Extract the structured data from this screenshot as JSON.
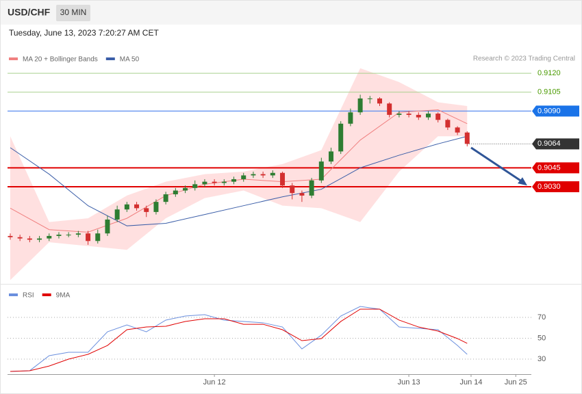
{
  "chart_data": {
    "type": "candlestick",
    "title": "USD/CHF",
    "interval": "30 MIN",
    "timestamp": "Tuesday, June 13, 2023 7:20:27 AM CET",
    "credit": "Research © 2023 Trading Central",
    "xlim": [
      -0.28,
      53.6
    ],
    "xticks": [
      {
        "value": 21,
        "label": "Jun 12"
      },
      {
        "value": 41,
        "label": "Jun 13"
      },
      {
        "value": 47.4,
        "label": "Jun 14"
      },
      {
        "value": 52,
        "label": "Jun 25"
      }
    ],
    "ylim": [
      0.8953,
      0.9158
    ],
    "candles": {
      "up_color": "#2e7d32",
      "down_color": "#d32f2f",
      "open": [
        0.8991,
        0.899,
        0.8989,
        0.8988,
        0.8989,
        0.8991,
        0.8992,
        0.8992,
        0.8993,
        0.8987,
        0.8993,
        0.9004,
        0.9012,
        0.9016,
        0.9013,
        0.901,
        0.9018,
        0.9024,
        0.9027,
        0.9029,
        0.9032,
        0.9034,
        0.9033,
        0.9034,
        0.9036,
        0.9039,
        0.904,
        0.9039,
        0.9041,
        0.9031,
        0.9025,
        0.9023,
        0.9035,
        0.905,
        0.9058,
        0.908,
        0.9089,
        0.91,
        0.91,
        0.9096,
        0.9087,
        0.9088,
        0.9087,
        0.9085,
        0.9088,
        0.9083,
        0.9077,
        0.9073
      ],
      "high": [
        0.8993,
        0.8992,
        0.8991,
        0.8991,
        0.8993,
        0.8994,
        0.8994,
        0.8995,
        0.8995,
        0.8996,
        0.9007,
        0.9015,
        0.9018,
        0.9018,
        0.9015,
        0.902,
        0.9026,
        0.9029,
        0.9031,
        0.9035,
        0.9036,
        0.9036,
        0.9036,
        0.9038,
        0.9041,
        0.9042,
        0.9042,
        0.9043,
        0.9042,
        0.9033,
        0.9027,
        0.9037,
        0.9053,
        0.9061,
        0.9082,
        0.9092,
        0.9103,
        0.9102,
        0.9101,
        0.9097,
        0.909,
        0.909,
        0.9089,
        0.909,
        0.9089,
        0.9084,
        0.9078,
        0.9074
      ],
      "low": [
        0.8988,
        0.8987,
        0.8986,
        0.8986,
        0.8987,
        0.8989,
        0.899,
        0.899,
        0.8984,
        0.8985,
        0.8991,
        0.9002,
        0.901,
        0.9011,
        0.9006,
        0.9008,
        0.9016,
        0.9022,
        0.9025,
        0.9027,
        0.903,
        0.9031,
        0.9031,
        0.9032,
        0.9034,
        0.9037,
        0.9037,
        0.9037,
        0.9029,
        0.902,
        0.9018,
        0.9021,
        0.9033,
        0.9048,
        0.9056,
        0.9078,
        0.9087,
        0.9096,
        0.9094,
        0.9085,
        0.9085,
        0.9085,
        0.9083,
        0.9083,
        0.9081,
        0.9075,
        0.9071,
        0.9062
      ],
      "close": [
        0.899,
        0.8989,
        0.8988,
        0.8989,
        0.8991,
        0.8992,
        0.8992,
        0.8993,
        0.8987,
        0.8993,
        0.9004,
        0.9012,
        0.9016,
        0.9013,
        0.901,
        0.9018,
        0.9024,
        0.9027,
        0.9029,
        0.9032,
        0.9034,
        0.9033,
        0.9034,
        0.9036,
        0.9039,
        0.904,
        0.9039,
        0.9041,
        0.9031,
        0.9025,
        0.9023,
        0.9035,
        0.905,
        0.9058,
        0.908,
        0.9089,
        0.91,
        0.91,
        0.9096,
        0.9087,
        0.9088,
        0.9087,
        0.9085,
        0.9088,
        0.9083,
        0.9077,
        0.9073,
        0.9064
      ]
    },
    "overlay_index": [
      0,
      4,
      8,
      12,
      16,
      20,
      24,
      28,
      32,
      36,
      40,
      44,
      47
    ],
    "overlays": [
      {
        "name": "MA 20 + Bollinger Bands",
        "color": "#f08080",
        "band_color": "#ffd6d6",
        "values": [
          0.9013,
          0.8996,
          0.8994,
          0.9005,
          0.9023,
          0.9032,
          0.9036,
          0.9034,
          0.9036,
          0.9067,
          0.9089,
          0.9091,
          0.908
        ],
        "upper": [
          0.907,
          0.9002,
          0.9005,
          0.9023,
          0.9034,
          0.904,
          0.9042,
          0.9048,
          0.9059,
          0.9124,
          0.9113,
          0.9097,
          0.9094
        ],
        "lower": [
          0.8956,
          0.8986,
          0.8983,
          0.898,
          0.9005,
          0.9021,
          0.9027,
          0.9015,
          0.9013,
          0.9002,
          0.9042,
          0.907,
          0.907
        ]
      },
      {
        "name": "MA 50",
        "color": "#3b5ea8",
        "values": [
          0.9061,
          0.904,
          0.9015,
          0.8999,
          0.9001,
          0.9008,
          0.9015,
          0.9022,
          0.9028,
          0.9045,
          0.9055,
          0.9064,
          0.907
        ]
      }
    ],
    "levels": [
      {
        "value": 0.912,
        "label": "0.9120",
        "color": "#a8d08d",
        "text_color": "#4a9a00",
        "style": "thin"
      },
      {
        "value": 0.9105,
        "label": "0.9105",
        "color": "#a8d08d",
        "text_color": "#4a9a00",
        "style": "thin"
      },
      {
        "value": 0.909,
        "label": "0.9090",
        "color": "#5b8def",
        "text_color": "#1a73e8",
        "style": "box"
      },
      {
        "value": 0.9064,
        "label": "0.9064",
        "color": "#555555",
        "text_color": "#333333",
        "style": "current"
      },
      {
        "value": 0.9045,
        "label": "0.9045",
        "color": "#e00000",
        "text_color": "#e00000",
        "style": "thick"
      },
      {
        "value": 0.903,
        "label": "0.9030",
        "color": "#e00000",
        "text_color": "#e00000",
        "style": "thick"
      }
    ],
    "forecast": {
      "from": 0.9061,
      "to": 0.9031,
      "color": "#2f5597"
    },
    "rsi": {
      "ylim": [
        15,
        100
      ],
      "yticks": [
        30,
        50,
        70
      ],
      "index": [
        0,
        2,
        4,
        6,
        8,
        10,
        12,
        14,
        16,
        18,
        20,
        22,
        24,
        26,
        28,
        30,
        32,
        34,
        36,
        38,
        40,
        42,
        44,
        46,
        47
      ],
      "series": [
        {
          "name": "RSI",
          "color": "#6a8fde",
          "values": [
            18.2,
            18.9,
            33.3,
            36.6,
            36.6,
            56.2,
            62.8,
            56.2,
            67.4,
            71.3,
            72.6,
            67.4,
            66.1,
            64.8,
            60.8,
            39.8,
            53,
            71.3,
            80.5,
            77.9,
            60.8,
            59.5,
            58.2,
            43.1,
            34.6
          ]
        },
        {
          "name": "9MA",
          "color": "#e00000",
          "values": [
            18.2,
            18.9,
            23.4,
            30,
            34.6,
            43.1,
            58.2,
            60.8,
            61.5,
            66.1,
            68.7,
            68.7,
            63.4,
            63.4,
            58.2,
            47.7,
            49.7,
            66.1,
            77.9,
            77.9,
            67.4,
            60.8,
            56.9,
            49.7,
            45.1
          ]
        }
      ]
    }
  }
}
